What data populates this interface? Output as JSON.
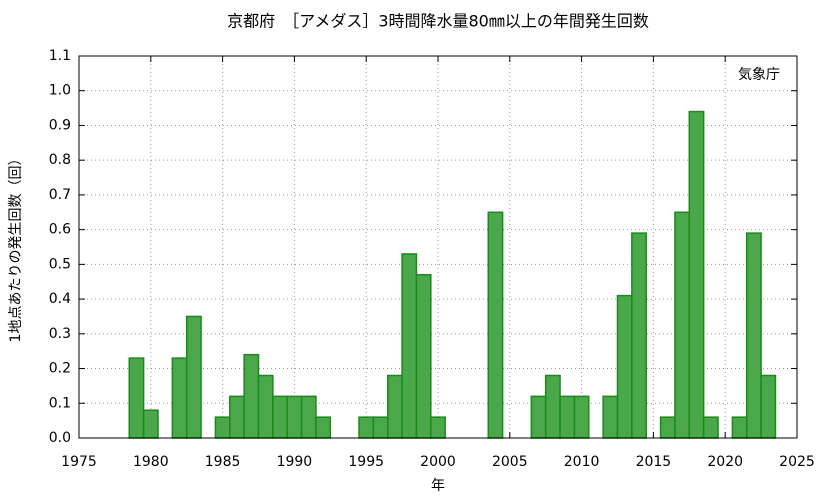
{
  "chart_data": {
    "type": "bar",
    "title": "京都府　［アメダス］3時間降水量80㎜以上の年間発生回数",
    "annotation": "気象庁",
    "x_label": "年",
    "y_label": "1地点あたりの発生回数（回）",
    "x": [
      1979,
      1980,
      1981,
      1982,
      1983,
      1984,
      1985,
      1986,
      1987,
      1988,
      1989,
      1990,
      1991,
      1992,
      1993,
      1994,
      1995,
      1996,
      1997,
      1998,
      1999,
      2000,
      2001,
      2002,
      2003,
      2004,
      2005,
      2006,
      2007,
      2008,
      2009,
      2010,
      2011,
      2012,
      2013,
      2014,
      2015,
      2016,
      2017,
      2018,
      2019,
      2020,
      2021,
      2022,
      2023
    ],
    "values": [
      0.23,
      0.08,
      0,
      0.23,
      0.35,
      0,
      0.06,
      0.12,
      0.24,
      0.18,
      0.12,
      0.12,
      0.12,
      0.06,
      0,
      0,
      0.06,
      0.06,
      0.18,
      0.53,
      0.47,
      0.06,
      0,
      0,
      0,
      0.65,
      0,
      0,
      0.12,
      0.18,
      0.12,
      0.12,
      0,
      0.12,
      0.41,
      0.59,
      0,
      0.06,
      0.65,
      0.94,
      0.06,
      0,
      0.06,
      0.59,
      0.18
    ],
    "color": "#4aa84a",
    "edge_color": "#1a8a1a",
    "xlim": [
      1975,
      2025
    ],
    "xticks": [
      1975,
      1980,
      1985,
      1990,
      1995,
      2000,
      2005,
      2010,
      2015,
      2020,
      2025
    ],
    "ylim": [
      0,
      1.1
    ],
    "yticks": [
      {
        "value": 0,
        "label": "0.0"
      },
      0.1,
      0.2,
      0.3,
      0.4,
      0.5,
      0.6,
      0.7,
      0.8,
      0.9,
      {
        "value": 1,
        "label": "1.0"
      },
      1.1
    ],
    "grid": true
  }
}
